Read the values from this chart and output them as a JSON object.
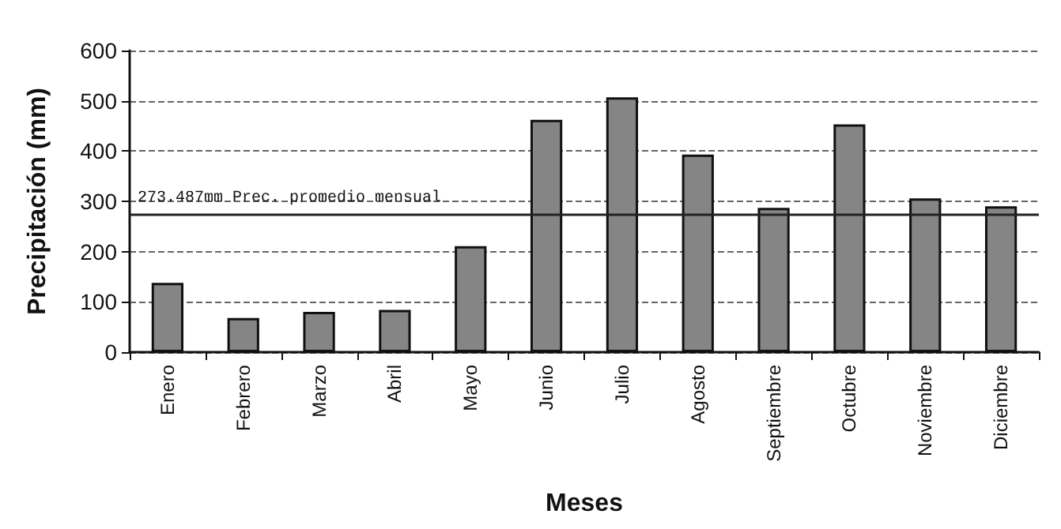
{
  "chart_data": {
    "type": "bar",
    "xlabel": "Meses",
    "ylabel": "Precipitación (mm)",
    "categories": [
      "Enero",
      "Febrero",
      "Marzo",
      "Abril",
      "Mayo",
      "Junio",
      "Julio",
      "Agosto",
      "Septiembre",
      "Octubre",
      "Noviembre",
      "Diciembre"
    ],
    "values": [
      138,
      68,
      80,
      84,
      211,
      462,
      507,
      393,
      287,
      453,
      306,
      290
    ],
    "color": "#858585",
    "ylim": [
      0,
      600
    ],
    "yticks": [
      0,
      100,
      200,
      300,
      400,
      500,
      600
    ],
    "grid": "y",
    "ref_lines": [
      {
        "axis": "y",
        "value": 273.487,
        "label": "273.487mm Prec. promedio mensual",
        "color": "#222222",
        "line_style": "solid"
      }
    ]
  }
}
